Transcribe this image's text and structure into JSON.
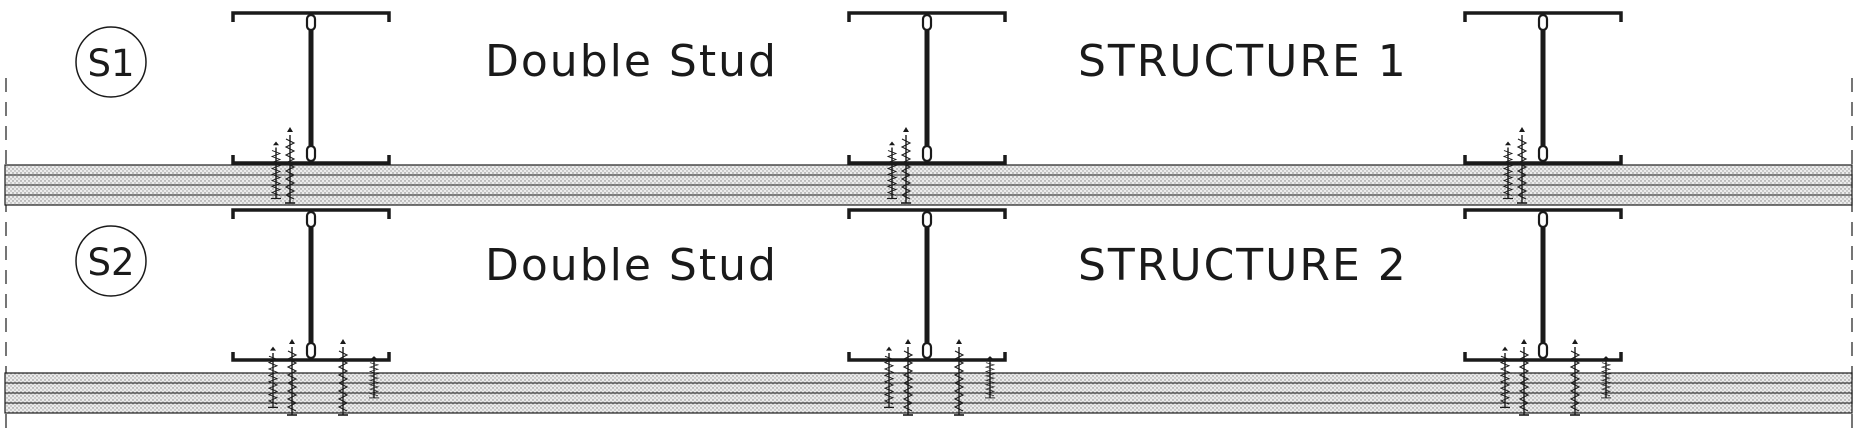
{
  "diagram": {
    "rows": [
      {
        "tag": "S1",
        "caption": "Double Stud",
        "structure": "STRUCTURE 1",
        "screws_per_stud": 2
      },
      {
        "tag": "S2",
        "caption": "Double Stud",
        "structure": "STRUCTURE 2",
        "screws_per_stud": 4
      }
    ],
    "studs_per_row": 3,
    "colors": {
      "ink": "#1a1a1a",
      "board_fill": "#dcdcdc"
    }
  }
}
